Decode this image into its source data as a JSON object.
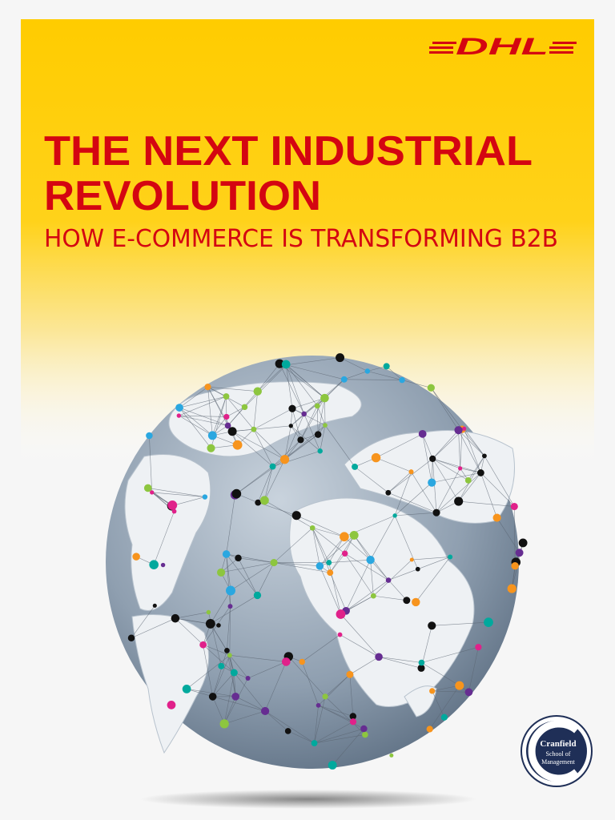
{
  "header": {
    "logo": "DHL"
  },
  "title": {
    "lines": [
      "THE NEXT INDUSTRIAL",
      "REVOLUTION"
    ],
    "subtitle": "HOW E-COMMERCE IS TRANSFORMING B2B"
  },
  "footer": {
    "partner_logo": {
      "name": "Cranfield",
      "lines": [
        "School of",
        "Management"
      ]
    }
  }
}
